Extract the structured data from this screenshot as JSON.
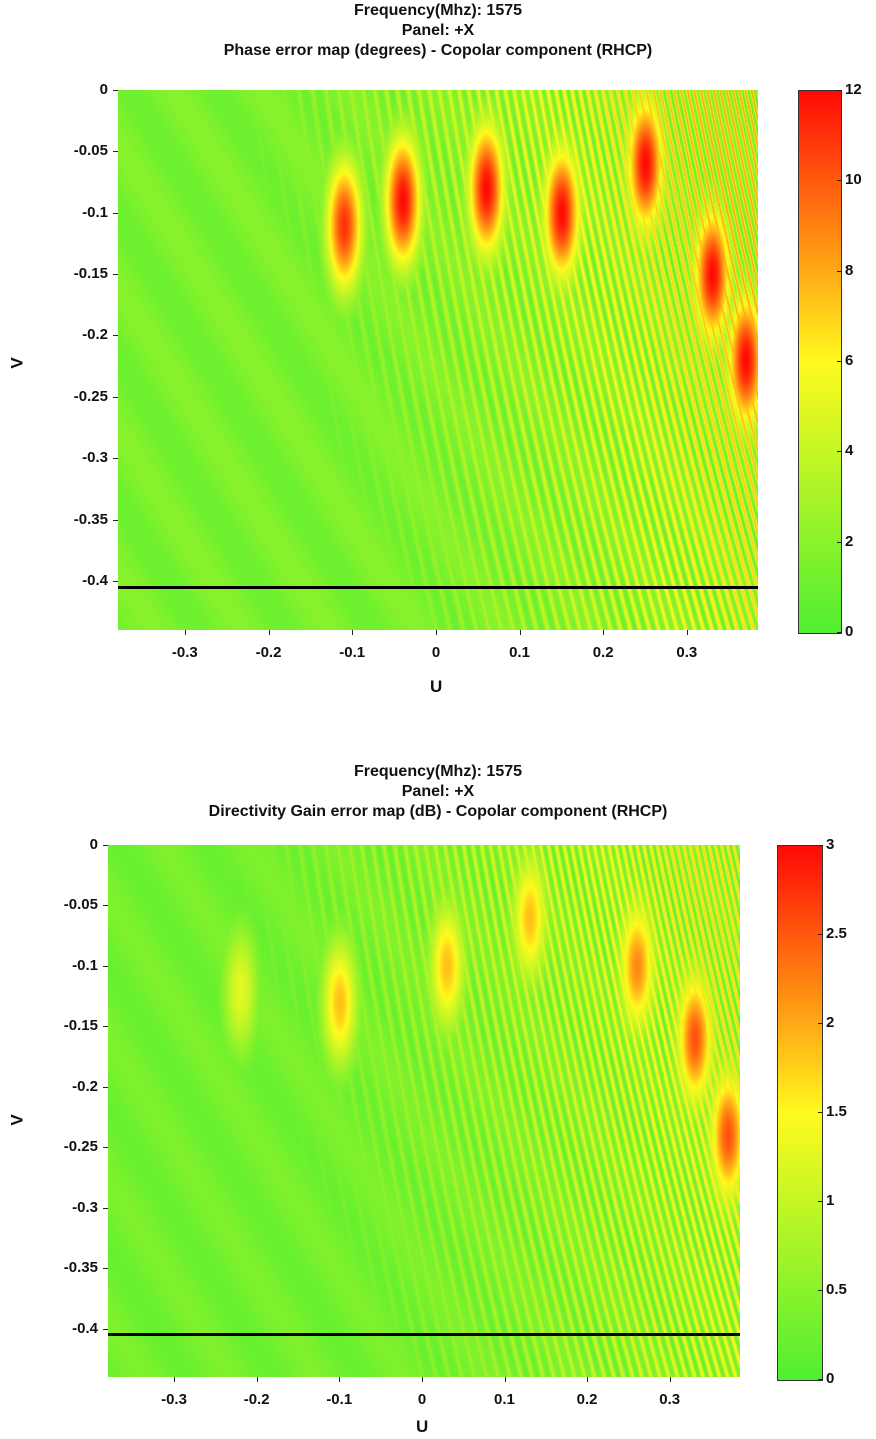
{
  "chart_data": [
    {
      "type": "heatmap",
      "title_lines": [
        "Frequency(Mhz): 1575",
        "Panel: +X",
        "Phase error map (degrees) - Copolar component (RHCP)"
      ],
      "xlabel": "U",
      "ylabel": "V",
      "xlim": [
        -0.38,
        0.385
      ],
      "ylim": [
        -0.44,
        0
      ],
      "x_ticks": [
        "-0.3",
        "-0.2",
        "-0.1",
        "0",
        "0.1",
        "0.2",
        "0.3"
      ],
      "y_ticks": [
        "0",
        "-0.05",
        "-0.1",
        "-0.15",
        "-0.2",
        "-0.25",
        "-0.3",
        "-0.35",
        "-0.4"
      ],
      "colorbar_ticks": [
        "12",
        "10",
        "8",
        "6",
        "4",
        "2",
        "0"
      ],
      "colorbar_range": [
        0,
        12
      ],
      "colormap": [
        "#00ff00",
        "#ffff00",
        "#ff0000"
      ],
      "horizontal_line_v": -0.405,
      "max_regions": [
        {
          "u": -0.11,
          "v": -0.11,
          "value": 11
        },
        {
          "u": -0.04,
          "v": -0.09,
          "value": 12
        },
        {
          "u": 0.06,
          "v": -0.08,
          "value": 12
        },
        {
          "u": 0.15,
          "v": -0.1,
          "value": 12
        },
        {
          "u": 0.25,
          "v": -0.06,
          "value": 12
        },
        {
          "u": 0.33,
          "v": -0.15,
          "value": 12
        },
        {
          "u": 0.37,
          "v": -0.22,
          "value": 12
        }
      ]
    },
    {
      "type": "heatmap",
      "title_lines": [
        "Frequency(Mhz): 1575",
        "Panel: +X",
        "Directivity Gain error map (dB) - Copolar component (RHCP)"
      ],
      "xlabel": "U",
      "ylabel": "V",
      "xlim": [
        -0.38,
        0.385
      ],
      "ylim": [
        -0.44,
        0
      ],
      "x_ticks": [
        "-0.3",
        "-0.2",
        "-0.1",
        "0",
        "0.1",
        "0.2",
        "0.3"
      ],
      "y_ticks": [
        "0",
        "-0.05",
        "-0.1",
        "-0.15",
        "-0.2",
        "-0.25",
        "-0.3",
        "-0.35",
        "-0.4"
      ],
      "colorbar_ticks": [
        "3",
        "2.5",
        "2",
        "1.5",
        "1",
        "0.5",
        "0"
      ],
      "colorbar_range": [
        0,
        3
      ],
      "colormap": [
        "#00ff00",
        "#ffff00",
        "#ff0000"
      ],
      "horizontal_line_v": -0.405,
      "max_regions": [
        {
          "u": -0.22,
          "v": -0.12,
          "value": 1.5
        },
        {
          "u": -0.1,
          "v": -0.13,
          "value": 2.2
        },
        {
          "u": 0.03,
          "v": -0.1,
          "value": 2.2
        },
        {
          "u": 0.13,
          "v": -0.06,
          "value": 2.2
        },
        {
          "u": 0.26,
          "v": -0.1,
          "value": 2.6
        },
        {
          "u": 0.33,
          "v": -0.16,
          "value": 3
        },
        {
          "u": 0.37,
          "v": -0.24,
          "value": 3
        }
      ]
    }
  ]
}
